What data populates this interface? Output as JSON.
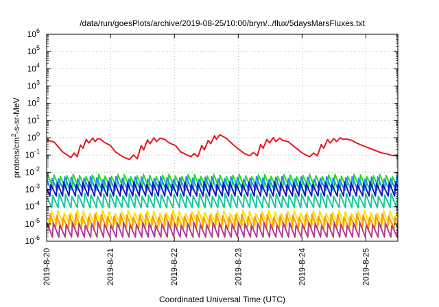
{
  "chart_data": {
    "type": "line",
    "title": "/data/run/goesPlots/archive/2019-08-25/10:00/bryn/../flux/5daysMarsFluxes.txt",
    "xlabel": "Coordinated Universal Time (UTC)",
    "ylabel_main": "protons/cm",
    "ylabel_sup": "2",
    "ylabel_tail": "-s-sr-MeV",
    "yscale": "log",
    "ylim_exp": [
      -6,
      6
    ],
    "y_tick_base": "10",
    "y_tick_exponents": [
      "-6",
      "-5",
      "-4",
      "-3",
      "-2",
      "-1",
      "0",
      "1",
      "2",
      "3",
      "4",
      "5",
      "6"
    ],
    "x_tick_labels": [
      "2019-8-20",
      "2019-8-21",
      "2019-8-22",
      "2019-8-23",
      "2019-8-24",
      "2019-8-25"
    ],
    "xlim_days": [
      0,
      5.5
    ],
    "grid": true,
    "series_colors": [
      "#e8141c",
      "#1ee01e",
      "#1e8cff",
      "#1414c8",
      "#14c8a0",
      "#ffe000",
      "#ff9600",
      "#b43c8c"
    ],
    "series": [
      {
        "color": "#e8141c",
        "points": [
          [
            0,
            0.75
          ],
          [
            0.12,
            0.55
          ],
          [
            0.18,
            0.3
          ],
          [
            0.25,
            0.15
          ],
          [
            0.32,
            0.1
          ],
          [
            0.38,
            0.07
          ],
          [
            0.43,
            0.13
          ],
          [
            0.48,
            0.08
          ],
          [
            0.53,
            0.38
          ],
          [
            0.57,
            0.25
          ],
          [
            0.62,
            0.8
          ],
          [
            0.66,
            0.5
          ],
          [
            0.72,
            0.95
          ],
          [
            0.76,
            0.6
          ],
          [
            0.8,
            0.9
          ],
          [
            0.85,
            0.8
          ],
          [
            0.9,
            0.55
          ],
          [
            1.0,
            0.35
          ],
          [
            1.08,
            0.15
          ],
          [
            1.15,
            0.1
          ],
          [
            1.22,
            0.07
          ],
          [
            1.3,
            0.055
          ],
          [
            1.36,
            0.1
          ],
          [
            1.42,
            0.06
          ],
          [
            1.48,
            0.35
          ],
          [
            1.52,
            0.2
          ],
          [
            1.58,
            0.75
          ],
          [
            1.62,
            0.45
          ],
          [
            1.68,
            1.0
          ],
          [
            1.72,
            0.6
          ],
          [
            1.78,
            0.95
          ],
          [
            1.85,
            0.8
          ],
          [
            1.92,
            0.5
          ],
          [
            2.02,
            0.35
          ],
          [
            2.1,
            0.15
          ],
          [
            2.2,
            0.1
          ],
          [
            2.26,
            0.08
          ],
          [
            2.31,
            0.12
          ],
          [
            2.37,
            0.08
          ],
          [
            2.43,
            0.35
          ],
          [
            2.47,
            0.2
          ],
          [
            2.53,
            0.7
          ],
          [
            2.57,
            0.45
          ],
          [
            2.63,
            1.3
          ],
          [
            2.66,
            0.8
          ],
          [
            2.71,
            1.5
          ],
          [
            2.76,
            1.2
          ],
          [
            2.82,
            0.9
          ],
          [
            2.92,
            0.4
          ],
          [
            3.02,
            0.2
          ],
          [
            3.1,
            0.12
          ],
          [
            3.18,
            0.09
          ],
          [
            3.24,
            0.14
          ],
          [
            3.3,
            0.09
          ],
          [
            3.35,
            0.4
          ],
          [
            3.39,
            0.25
          ],
          [
            3.45,
            0.8
          ],
          [
            3.49,
            0.5
          ],
          [
            3.55,
            1.0
          ],
          [
            3.59,
            0.6
          ],
          [
            3.65,
            0.95
          ],
          [
            3.7,
            0.7
          ],
          [
            3.78,
            0.6
          ],
          [
            3.88,
            0.3
          ],
          [
            3.98,
            0.15
          ],
          [
            4.06,
            0.1
          ],
          [
            4.12,
            0.08
          ],
          [
            4.18,
            0.13
          ],
          [
            4.24,
            0.09
          ],
          [
            4.3,
            0.4
          ],
          [
            4.34,
            0.25
          ],
          [
            4.4,
            0.8
          ],
          [
            4.44,
            0.5
          ],
          [
            4.5,
            0.9
          ],
          [
            4.54,
            0.6
          ],
          [
            4.6,
            1.0
          ],
          [
            4.64,
            0.8
          ],
          [
            4.7,
            0.85
          ],
          [
            4.78,
            0.7
          ],
          [
            4.85,
            0.5
          ],
          [
            4.95,
            0.35
          ],
          [
            5.05,
            0.25
          ],
          [
            5.15,
            0.18
          ],
          [
            5.25,
            0.13
          ],
          [
            5.32,
            0.12
          ],
          [
            5.38,
            0.1
          ],
          [
            5.44,
            0.09
          ],
          [
            5.5,
            0.1
          ]
        ]
      },
      {
        "color": "#1ee01e",
        "base": 0.0035,
        "amp": 0.002,
        "period": 0.1,
        "offset": 0.0
      },
      {
        "color": "#1e8cff",
        "base": 0.0025,
        "amp": 0.0015,
        "period": 0.1,
        "offset": 0.03
      },
      {
        "color": "#1414c8",
        "base": 0.0012,
        "amp": 0.0008,
        "period": 0.1,
        "offset": 0.05
      },
      {
        "color": "#14c8a0",
        "base": 0.00025,
        "amp": 0.00018,
        "period": 0.1,
        "offset": 0.02
      },
      {
        "color": "#ffe000",
        "base": 2.5e-05,
        "amp": 2e-05,
        "period": 0.1,
        "offset": 0.04
      },
      {
        "color": "#ff9600",
        "base": 1.5e-05,
        "amp": 1.2e-05,
        "period": 0.1,
        "offset": 0.06
      },
      {
        "color": "#b43c8c",
        "base": 5e-06,
        "amp": 4e-06,
        "period": 0.1,
        "offset": 0.01
      }
    ]
  }
}
